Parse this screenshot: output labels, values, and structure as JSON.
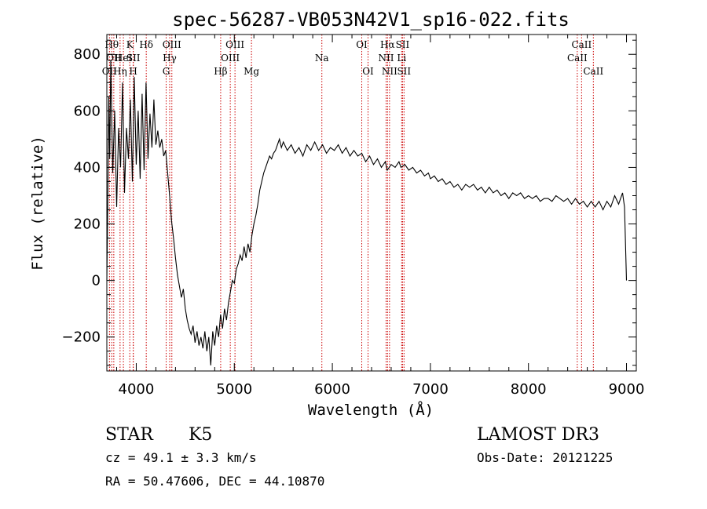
{
  "chart_data": {
    "type": "line",
    "title": "spec-56287-VB053N42V1_sp16-022.fits",
    "xlabel": "Wavelength (Å)",
    "ylabel": "Flux (relative)",
    "xlim": [
      3700,
      9100
    ],
    "ylim": [
      -320,
      870
    ],
    "x_ticks": [
      4000,
      5000,
      6000,
      7000,
      8000,
      9000
    ],
    "x_tick_labels": [
      "4000",
      "5000",
      "6000",
      "7000",
      "8000",
      "9000"
    ],
    "y_ticks": [
      -200,
      0,
      200,
      400,
      600,
      800
    ],
    "y_tick_labels": [
      "−200",
      "0",
      "200",
      "400",
      "600",
      "800"
    ],
    "grid": false,
    "series": [
      {
        "color": "#000000",
        "points": [
          [
            3700,
            0
          ],
          [
            3710,
            280
          ],
          [
            3720,
            650
          ],
          [
            3730,
            430
          ],
          [
            3740,
            780
          ],
          [
            3760,
            380
          ],
          [
            3780,
            600
          ],
          [
            3800,
            260
          ],
          [
            3820,
            540
          ],
          [
            3840,
            400
          ],
          [
            3860,
            700
          ],
          [
            3880,
            310
          ],
          [
            3900,
            540
          ],
          [
            3920,
            430
          ],
          [
            3940,
            640
          ],
          [
            3960,
            350
          ],
          [
            3980,
            720
          ],
          [
            4000,
            410
          ],
          [
            4020,
            600
          ],
          [
            4040,
            360
          ],
          [
            4060,
            660
          ],
          [
            4080,
            390
          ],
          [
            4100,
            700
          ],
          [
            4120,
            430
          ],
          [
            4140,
            590
          ],
          [
            4160,
            470
          ],
          [
            4180,
            640
          ],
          [
            4200,
            480
          ],
          [
            4220,
            530
          ],
          [
            4240,
            470
          ],
          [
            4260,
            500
          ],
          [
            4280,
            440
          ],
          [
            4300,
            460
          ],
          [
            4320,
            380
          ],
          [
            4340,
            300
          ],
          [
            4360,
            210
          ],
          [
            4380,
            150
          ],
          [
            4400,
            80
          ],
          [
            4420,
            20
          ],
          [
            4440,
            -20
          ],
          [
            4460,
            -60
          ],
          [
            4480,
            -30
          ],
          [
            4500,
            -100
          ],
          [
            4520,
            -140
          ],
          [
            4540,
            -170
          ],
          [
            4560,
            -190
          ],
          [
            4580,
            -160
          ],
          [
            4600,
            -220
          ],
          [
            4620,
            -180
          ],
          [
            4640,
            -230
          ],
          [
            4660,
            -200
          ],
          [
            4680,
            -240
          ],
          [
            4700,
            -180
          ],
          [
            4720,
            -250
          ],
          [
            4740,
            -200
          ],
          [
            4760,
            -300
          ],
          [
            4780,
            -180
          ],
          [
            4800,
            -230
          ],
          [
            4820,
            -160
          ],
          [
            4840,
            -200
          ],
          [
            4860,
            -120
          ],
          [
            4880,
            -170
          ],
          [
            4900,
            -100
          ],
          [
            4920,
            -140
          ],
          [
            4940,
            -80
          ],
          [
            4960,
            -40
          ],
          [
            4980,
            0
          ],
          [
            5000,
            -10
          ],
          [
            5020,
            40
          ],
          [
            5040,
            60
          ],
          [
            5060,
            90
          ],
          [
            5080,
            70
          ],
          [
            5100,
            120
          ],
          [
            5120,
            80
          ],
          [
            5140,
            130
          ],
          [
            5160,
            100
          ],
          [
            5180,
            160
          ],
          [
            5200,
            200
          ],
          [
            5220,
            230
          ],
          [
            5240,
            270
          ],
          [
            5260,
            320
          ],
          [
            5280,
            350
          ],
          [
            5300,
            380
          ],
          [
            5320,
            400
          ],
          [
            5340,
            420
          ],
          [
            5360,
            440
          ],
          [
            5380,
            430
          ],
          [
            5400,
            450
          ],
          [
            5420,
            460
          ],
          [
            5440,
            480
          ],
          [
            5460,
            500
          ],
          [
            5480,
            470
          ],
          [
            5500,
            490
          ],
          [
            5540,
            460
          ],
          [
            5580,
            480
          ],
          [
            5620,
            450
          ],
          [
            5660,
            470
          ],
          [
            5700,
            440
          ],
          [
            5740,
            480
          ],
          [
            5780,
            460
          ],
          [
            5820,
            490
          ],
          [
            5860,
            460
          ],
          [
            5900,
            480
          ],
          [
            5940,
            450
          ],
          [
            5980,
            470
          ],
          [
            6020,
            460
          ],
          [
            6060,
            480
          ],
          [
            6100,
            450
          ],
          [
            6140,
            470
          ],
          [
            6180,
            440
          ],
          [
            6220,
            460
          ],
          [
            6260,
            440
          ],
          [
            6300,
            450
          ],
          [
            6340,
            420
          ],
          [
            6380,
            440
          ],
          [
            6420,
            410
          ],
          [
            6460,
            430
          ],
          [
            6500,
            400
          ],
          [
            6540,
            420
          ],
          [
            6560,
            390
          ],
          [
            6600,
            410
          ],
          [
            6640,
            400
          ],
          [
            6680,
            420
          ],
          [
            6700,
            400
          ],
          [
            6740,
            410
          ],
          [
            6780,
            390
          ],
          [
            6820,
            400
          ],
          [
            6860,
            380
          ],
          [
            6900,
            390
          ],
          [
            6940,
            370
          ],
          [
            6980,
            380
          ],
          [
            7000,
            360
          ],
          [
            7040,
            370
          ],
          [
            7080,
            350
          ],
          [
            7120,
            360
          ],
          [
            7160,
            340
          ],
          [
            7200,
            350
          ],
          [
            7240,
            330
          ],
          [
            7280,
            340
          ],
          [
            7320,
            320
          ],
          [
            7360,
            340
          ],
          [
            7400,
            330
          ],
          [
            7440,
            340
          ],
          [
            7480,
            320
          ],
          [
            7520,
            330
          ],
          [
            7560,
            310
          ],
          [
            7600,
            330
          ],
          [
            7640,
            310
          ],
          [
            7680,
            320
          ],
          [
            7720,
            300
          ],
          [
            7760,
            310
          ],
          [
            7800,
            290
          ],
          [
            7840,
            310
          ],
          [
            7880,
            300
          ],
          [
            7920,
            310
          ],
          [
            7960,
            290
          ],
          [
            8000,
            300
          ],
          [
            8040,
            290
          ],
          [
            8080,
            300
          ],
          [
            8120,
            280
          ],
          [
            8160,
            290
          ],
          [
            8200,
            290
          ],
          [
            8240,
            280
          ],
          [
            8280,
            300
          ],
          [
            8320,
            290
          ],
          [
            8360,
            280
          ],
          [
            8400,
            290
          ],
          [
            8440,
            270
          ],
          [
            8480,
            290
          ],
          [
            8520,
            270
          ],
          [
            8560,
            280
          ],
          [
            8600,
            260
          ],
          [
            8640,
            280
          ],
          [
            8680,
            260
          ],
          [
            8720,
            280
          ],
          [
            8760,
            250
          ],
          [
            8800,
            280
          ],
          [
            8840,
            260
          ],
          [
            8880,
            300
          ],
          [
            8920,
            270
          ],
          [
            8960,
            310
          ],
          [
            8980,
            260
          ],
          [
            9000,
            0
          ]
        ]
      }
    ],
    "line_marks": [
      {
        "wavelength": 3727,
        "label": "OII",
        "row": 3
      },
      {
        "wavelength": 3750,
        "label": "Hθ",
        "row": 1
      },
      {
        "wavelength": 3771,
        "label": "OII",
        "row": 2
      },
      {
        "wavelength": 3835,
        "label": "Hη",
        "row": 3
      },
      {
        "wavelength": 3869,
        "label": "HeI",
        "row": 2
      },
      {
        "wavelength": 3934,
        "label": "K",
        "row": 1
      },
      {
        "wavelength": 3969,
        "label": "H",
        "row": 3
      },
      {
        "wavelength": 3970,
        "label": "SII",
        "row": 2
      },
      {
        "wavelength": 4102,
        "label": "Hδ",
        "row": 1
      },
      {
        "wavelength": 4305,
        "label": "G",
        "row": 3
      },
      {
        "wavelength": 4341,
        "label": "Hγ",
        "row": 2
      },
      {
        "wavelength": 4363,
        "label": "OIII",
        "row": 1
      },
      {
        "wavelength": 4861,
        "label": "Hβ",
        "row": 3
      },
      {
        "wavelength": 4959,
        "label": "OIII",
        "row": 2
      },
      {
        "wavelength": 5007,
        "label": "OIII",
        "row": 1
      },
      {
        "wavelength": 5175,
        "label": "Mg",
        "row": 3
      },
      {
        "wavelength": 5893,
        "label": "Na",
        "row": 2
      },
      {
        "wavelength": 6300,
        "label": "OI",
        "row": 1
      },
      {
        "wavelength": 6364,
        "label": "OI",
        "row": 3
      },
      {
        "wavelength": 6548,
        "label": "NII",
        "row": 2
      },
      {
        "wavelength": 6563,
        "label": "Hα",
        "row": 1
      },
      {
        "wavelength": 6583,
        "label": "NII",
        "row": 3
      },
      {
        "wavelength": 6707,
        "label": "Li",
        "row": 2
      },
      {
        "wavelength": 6716,
        "label": "SII",
        "row": 1
      },
      {
        "wavelength": 6731,
        "label": "SII",
        "row": 3
      },
      {
        "wavelength": 8498,
        "label": "CaII",
        "row": 2
      },
      {
        "wavelength": 8542,
        "label": "CaII",
        "row": 1
      },
      {
        "wavelength": 8662,
        "label": "CaII",
        "row": 3
      }
    ],
    "line_mark_color": "#cc0000"
  },
  "info": {
    "object_class": "STAR",
    "subclass": "K5",
    "redshift": "cz =  49.1 ± 3.3 km/s",
    "coords": "RA =  50.47606, DEC =  44.10870",
    "survey": "LAMOST DR3",
    "obs_date": "Obs-Date: 20121225"
  }
}
